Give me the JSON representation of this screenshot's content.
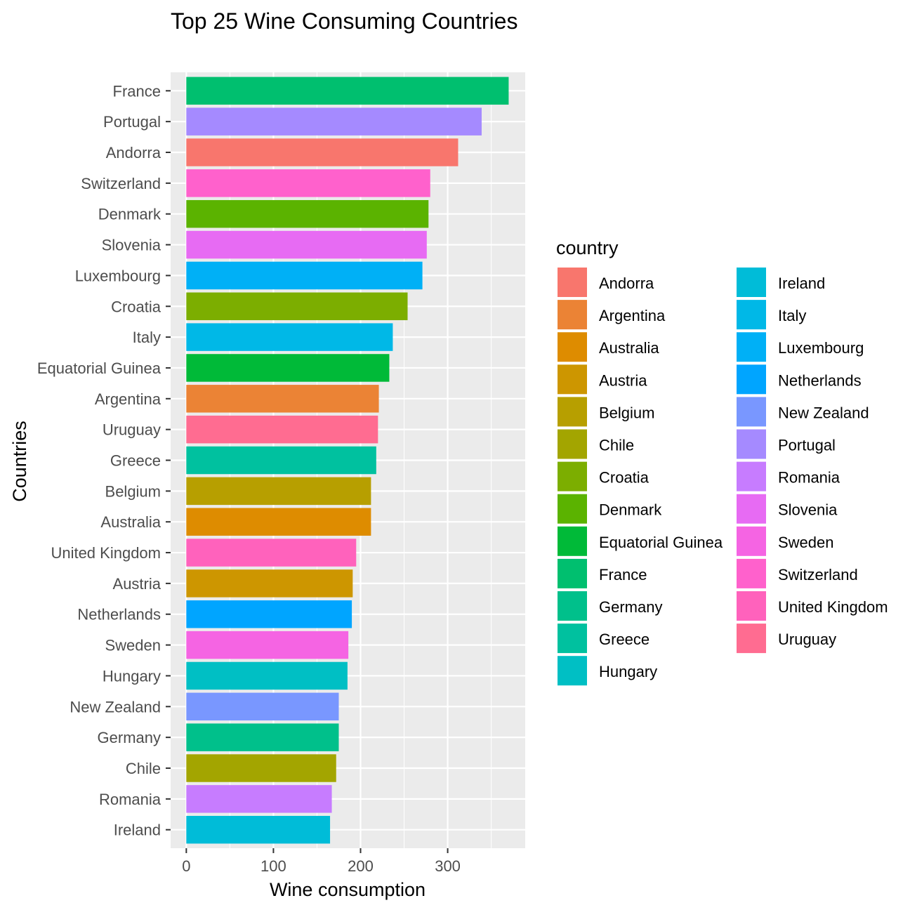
{
  "chart_data": {
    "type": "bar",
    "orientation": "horizontal",
    "title": "Top 25 Wine Consuming Countries",
    "xlabel": "Wine consumption",
    "ylabel": "Countries",
    "xlim": [
      -18,
      389
    ],
    "xticks": [
      0,
      100,
      200,
      300
    ],
    "grid": true,
    "legend_title": "country",
    "legend_position": "right",
    "bars": [
      {
        "category": "France",
        "value": 370
      },
      {
        "category": "Portugal",
        "value": 339
      },
      {
        "category": "Andorra",
        "value": 312
      },
      {
        "category": "Switzerland",
        "value": 280
      },
      {
        "category": "Denmark",
        "value": 278
      },
      {
        "category": "Slovenia",
        "value": 276
      },
      {
        "category": "Luxembourg",
        "value": 271
      },
      {
        "category": "Croatia",
        "value": 254
      },
      {
        "category": "Italy",
        "value": 237
      },
      {
        "category": "Equatorial Guinea",
        "value": 233
      },
      {
        "category": "Argentina",
        "value": 221
      },
      {
        "category": "Uruguay",
        "value": 220
      },
      {
        "category": "Greece",
        "value": 218
      },
      {
        "category": "Belgium",
        "value": 212
      },
      {
        "category": "Australia",
        "value": 212
      },
      {
        "category": "United Kingdom",
        "value": 195
      },
      {
        "category": "Austria",
        "value": 191
      },
      {
        "category": "Netherlands",
        "value": 190
      },
      {
        "category": "Sweden",
        "value": 186
      },
      {
        "category": "Hungary",
        "value": 185
      },
      {
        "category": "New Zealand",
        "value": 175
      },
      {
        "category": "Germany",
        "value": 175
      },
      {
        "category": "Chile",
        "value": 172
      },
      {
        "category": "Romania",
        "value": 167
      },
      {
        "category": "Ireland",
        "value": 165
      }
    ],
    "legend": [
      {
        "name": "Andorra",
        "color": "#F8766D"
      },
      {
        "name": "Argentina",
        "color": "#EB8335"
      },
      {
        "name": "Australia",
        "color": "#DE8C00"
      },
      {
        "name": "Austria",
        "color": "#CD9600"
      },
      {
        "name": "Belgium",
        "color": "#B79F00"
      },
      {
        "name": "Chile",
        "color": "#A3A500"
      },
      {
        "name": "Croatia",
        "color": "#7CAE00"
      },
      {
        "name": "Denmark",
        "color": "#5BB300"
      },
      {
        "name": "Equatorial Guinea",
        "color": "#00BA38"
      },
      {
        "name": "France",
        "color": "#00BF6F"
      },
      {
        "name": "Germany",
        "color": "#00C08B"
      },
      {
        "name": "Greece",
        "color": "#00C19F"
      },
      {
        "name": "Hungary",
        "color": "#00BFC4"
      },
      {
        "name": "Ireland",
        "color": "#00BCD8"
      },
      {
        "name": "Italy",
        "color": "#00B8E7"
      },
      {
        "name": "Luxembourg",
        "color": "#00B0F6"
      },
      {
        "name": "Netherlands",
        "color": "#00A5FF"
      },
      {
        "name": "New Zealand",
        "color": "#7997FF"
      },
      {
        "name": "Portugal",
        "color": "#A58AFF"
      },
      {
        "name": "Romania",
        "color": "#C77CFF"
      },
      {
        "name": "Slovenia",
        "color": "#E76BF3"
      },
      {
        "name": "Sweden",
        "color": "#F564E3"
      },
      {
        "name": "Switzerland",
        "color": "#FF61CC"
      },
      {
        "name": "United Kingdom",
        "color": "#FF62BC"
      },
      {
        "name": "Uruguay",
        "color": "#FF6C91"
      }
    ],
    "colors": {
      "panel_background": "#EBEBEB",
      "grid_major": "#FFFFFF",
      "tick_text": "#4D4D4D",
      "tick_mark": "#333333"
    }
  }
}
